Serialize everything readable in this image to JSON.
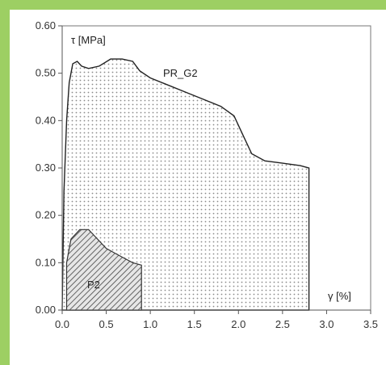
{
  "chart_data": {
    "type": "area",
    "title": "",
    "xlabel": "γ [%]",
    "ylabel": "τ [MPa]",
    "xlim": [
      0,
      3.5
    ],
    "ylim": [
      0,
      0.6
    ],
    "xticks": [
      "0.0",
      "0.5",
      "1.0",
      "1.5",
      "2.0",
      "2.5",
      "3.0",
      "3.5"
    ],
    "yticks": [
      "0.00",
      "0.10",
      "0.20",
      "0.30",
      "0.40",
      "0.50",
      "0.60"
    ],
    "grid": false,
    "series": [
      {
        "name": "PR_G2",
        "fill": "dotted",
        "x": [
          0.0,
          0.02,
          0.05,
          0.08,
          0.12,
          0.17,
          0.22,
          0.3,
          0.42,
          0.55,
          0.68,
          0.8,
          0.88,
          1.0,
          1.2,
          1.4,
          1.6,
          1.8,
          1.95,
          2.05,
          2.15,
          2.3,
          2.5,
          2.7,
          2.8,
          2.8
        ],
        "y": [
          0.0,
          0.25,
          0.4,
          0.48,
          0.52,
          0.525,
          0.515,
          0.51,
          0.515,
          0.53,
          0.53,
          0.525,
          0.505,
          0.49,
          0.475,
          0.46,
          0.445,
          0.43,
          0.41,
          0.37,
          0.33,
          0.315,
          0.31,
          0.305,
          0.3,
          0.0
        ]
      },
      {
        "name": "P2",
        "fill": "hatched",
        "x": [
          0.05,
          0.1,
          0.2,
          0.3,
          0.4,
          0.5,
          0.6,
          0.7,
          0.8,
          0.9,
          0.9
        ],
        "y": [
          0.1,
          0.15,
          0.17,
          0.17,
          0.15,
          0.13,
          0.12,
          0.11,
          0.1,
          0.095,
          0.0
        ]
      }
    ],
    "annotations": {
      "pr_g2": "PR_G2",
      "p2": "P2"
    },
    "colors": {
      "line": "#222222",
      "dots": "#8a8a8a",
      "hatch": "#444444",
      "frame": "#777777"
    }
  }
}
